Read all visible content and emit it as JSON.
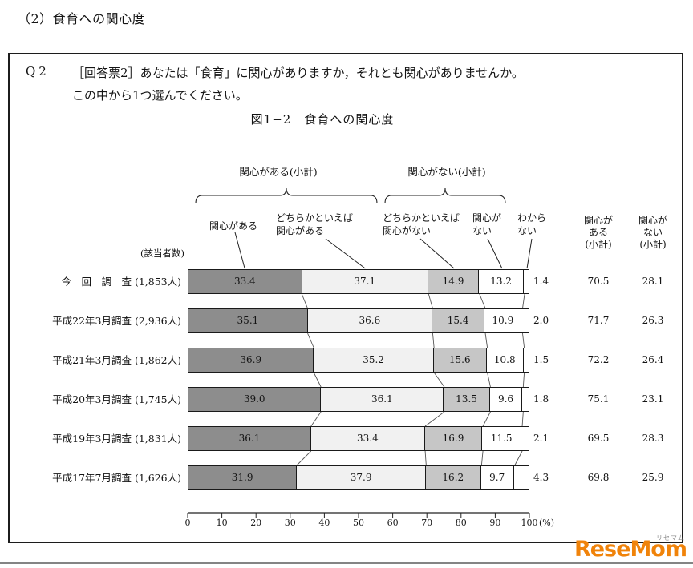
{
  "page": {
    "heading": "（2）食育への関心度"
  },
  "question": {
    "number": "Q2",
    "line1": "［回答票2］あなたは「食育」に関心がありますか，それとも関心がありませんか。",
    "line2": "この中から1つ選んでください。"
  },
  "chart_data": {
    "type": "bar",
    "stacked": true,
    "orientation": "horizontal",
    "title": "図1−2　食育への関心度",
    "xlim": [
      0,
      100
    ],
    "x_ticks": [
      0,
      10,
      20,
      30,
      40,
      50,
      60,
      70,
      80,
      90,
      100
    ],
    "x_unit": "(%)",
    "respondents_header": "(該当者数)",
    "groups": [
      {
        "label": "関心がある(小計)"
      },
      {
        "label": "関心がない(小計)"
      }
    ],
    "series": [
      {
        "name": "関心がある",
        "label_lines": [
          "関心がある"
        ],
        "color": "#8d8d8d"
      },
      {
        "name": "どちらかといえば関心がある",
        "label_lines": [
          "どちらかといえば",
          "関心がある"
        ],
        "color": "#f1f1f1"
      },
      {
        "name": "どちらかといえば関心がない",
        "label_lines": [
          "どちらかといえば",
          "関心がない"
        ],
        "color": "#c6c6c6"
      },
      {
        "name": "関心がない",
        "label_lines": [
          "関心が",
          "ない"
        ],
        "color": "#ffffff"
      },
      {
        "name": "わからない",
        "label_lines": [
          "わから",
          "ない"
        ],
        "color": "#ffffff"
      }
    ],
    "summary_columns": [
      {
        "label_lines": [
          "関心が",
          "ある",
          "(小計)"
        ]
      },
      {
        "label_lines": [
          "関心が",
          "ない",
          "(小計)"
        ]
      }
    ],
    "rows": [
      {
        "label": "今　回　調　査",
        "respondents": "(1,853人)",
        "values": [
          33.4,
          37.1,
          14.9,
          13.2,
          1.4
        ],
        "interest_subtotal": 70.5,
        "no_interest_subtotal": 28.1
      },
      {
        "label": "平成22年3月調査",
        "respondents": "(2,936人)",
        "values": [
          35.1,
          36.6,
          15.4,
          10.9,
          2.0
        ],
        "interest_subtotal": 71.7,
        "no_interest_subtotal": 26.3
      },
      {
        "label": "平成21年3月調査",
        "respondents": "(1,862人)",
        "values": [
          36.9,
          35.2,
          15.6,
          10.8,
          1.5
        ],
        "interest_subtotal": 72.2,
        "no_interest_subtotal": 26.4
      },
      {
        "label": "平成20年3月調査",
        "respondents": "(1,745人)",
        "values": [
          39.0,
          36.1,
          13.5,
          9.6,
          1.8
        ],
        "interest_subtotal": 75.1,
        "no_interest_subtotal": 23.1
      },
      {
        "label": "平成19年3月調査",
        "respondents": "(1,831人)",
        "values": [
          36.1,
          33.4,
          16.9,
          11.5,
          2.1
        ],
        "interest_subtotal": 69.5,
        "no_interest_subtotal": 28.3
      },
      {
        "label": "平成17年7月調査",
        "respondents": "(1,626人)",
        "values": [
          31.9,
          37.9,
          16.2,
          9.7,
          4.3
        ],
        "interest_subtotal": 69.8,
        "no_interest_subtotal": 25.9
      }
    ]
  },
  "logo": {
    "text": "ReseMom",
    "ruby": "リセマム"
  }
}
